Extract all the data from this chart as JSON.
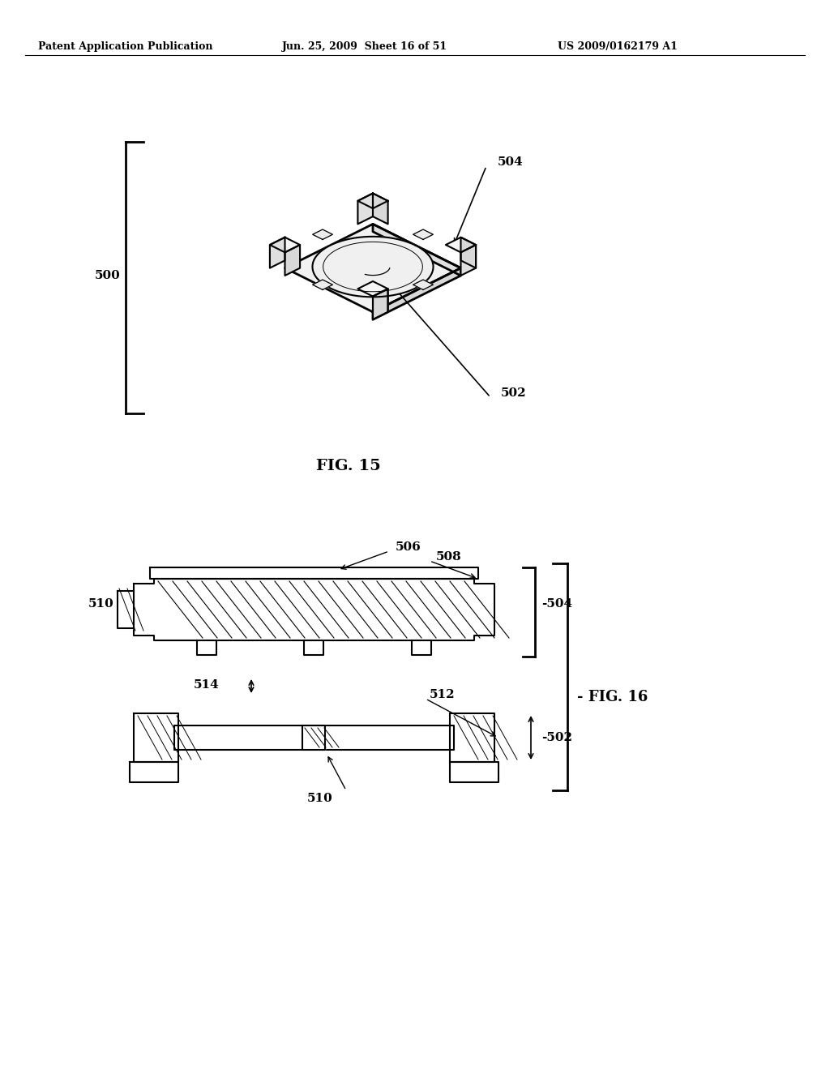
{
  "bg_color": "#ffffff",
  "header_left": "Patent Application Publication",
  "header_mid": "Jun. 25, 2009  Sheet 16 of 51",
  "header_right": "US 2009/0162179 A1",
  "fig15_caption": "FIG. 15",
  "fig16_caption": "FIG. 16",
  "label_500": "500",
  "label_502_fig15": "502",
  "label_504_fig15": "504",
  "label_504_fig16": "504",
  "label_506": "506",
  "label_508": "508",
  "label_510_fig16_top": "510",
  "label_510_fig16_bot": "510",
  "label_512": "512",
  "label_514": "514",
  "label_502_fig16": "502"
}
